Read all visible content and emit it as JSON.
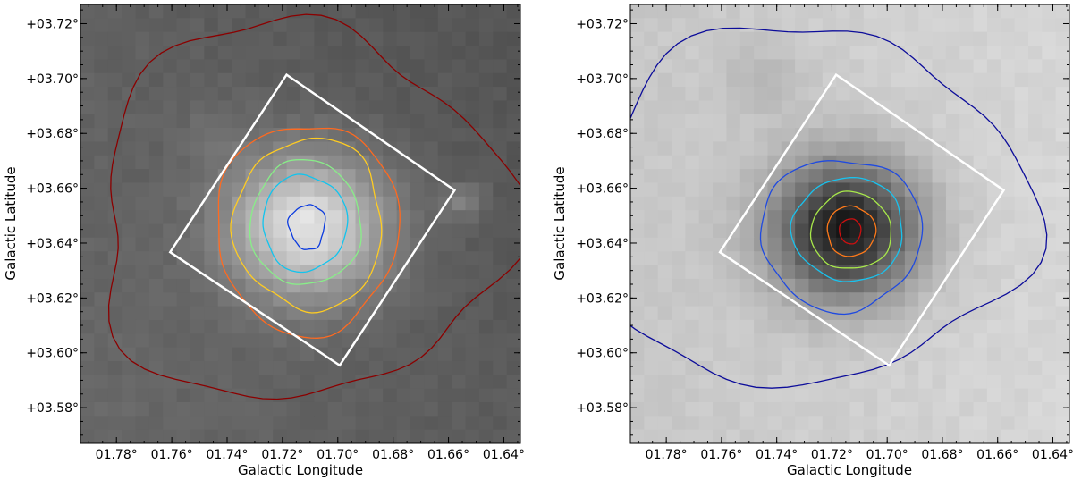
{
  "chart_data": [
    {
      "type": "heatmap",
      "colormap": "gray",
      "xlabel": "Galactic Longitude",
      "ylabel": "Galactic Latitude",
      "xlim": [
        1.793,
        1.634
      ],
      "ylim": [
        3.567,
        3.727
      ],
      "xticks": [
        1.78,
        1.76,
        1.74,
        1.72,
        1.7,
        1.68,
        1.66,
        1.64
      ],
      "xtick_labels": [
        "01.78°",
        "01.76°",
        "01.74°",
        "01.72°",
        "01.70°",
        "01.68°",
        "01.66°",
        "01.64°"
      ],
      "yticks": [
        3.58,
        3.6,
        3.62,
        3.64,
        3.66,
        3.68,
        3.7,
        3.72
      ],
      "ytick_labels": [
        "+03.58°",
        "+03.60°",
        "+03.62°",
        "+03.64°",
        "+03.66°",
        "+03.68°",
        "+03.70°",
        "+03.72°"
      ],
      "peak": {
        "l": 1.711,
        "b": 3.646
      },
      "background_level": 0.38,
      "peak_level": 0.9,
      "contours": [
        {
          "color": "#8b0000",
          "description": "lowest"
        },
        {
          "color": "#ff6a20"
        },
        {
          "color": "#ffcc22"
        },
        {
          "color": "#88ee88"
        },
        {
          "color": "#11c4ee"
        },
        {
          "color": "#0a3adf"
        }
      ],
      "footprint_box": {
        "color": "#ffffff",
        "corners": [
          [
            1.7185,
            3.7014
          ],
          [
            1.6578,
            3.6593
          ],
          [
            1.6993,
            3.5954
          ],
          [
            1.7606,
            3.6367
          ]
        ]
      }
    },
    {
      "type": "heatmap",
      "colormap": "gray_reversed",
      "xlabel": "Galactic Longitude",
      "ylabel": "Galactic Latitude",
      "xlim": [
        1.793,
        1.634
      ],
      "ylim": [
        3.567,
        3.727
      ],
      "xticks": [
        1.78,
        1.76,
        1.74,
        1.72,
        1.7,
        1.68,
        1.66,
        1.64
      ],
      "xtick_labels": [
        "01.78°",
        "01.76°",
        "01.74°",
        "01.72°",
        "01.70°",
        "01.68°",
        "01.66°",
        "01.64°"
      ],
      "yticks": [
        3.58,
        3.6,
        3.62,
        3.64,
        3.66,
        3.68,
        3.7,
        3.72
      ],
      "ytick_labels": [
        "+03.58°",
        "+03.60°",
        "+03.62°",
        "+03.64°",
        "+03.66°",
        "+03.68°",
        "+03.70°",
        "+03.72°"
      ],
      "peak": {
        "l": 1.715,
        "b": 3.645
      },
      "background_level": 0.78,
      "peak_level": 0.07,
      "contours": [
        {
          "color": "#0c0c9a"
        },
        {
          "color": "#1f4ae0"
        },
        {
          "color": "#19c2ee"
        },
        {
          "color": "#a8e84a"
        },
        {
          "color": "#ff7a1a"
        },
        {
          "color": "#cc1010"
        }
      ],
      "footprint_box": {
        "color": "#ffffff",
        "corners": [
          [
            1.7185,
            3.7014
          ],
          [
            1.6578,
            3.6593
          ],
          [
            1.6993,
            3.5954
          ],
          [
            1.7606,
            3.6367
          ]
        ]
      }
    }
  ]
}
